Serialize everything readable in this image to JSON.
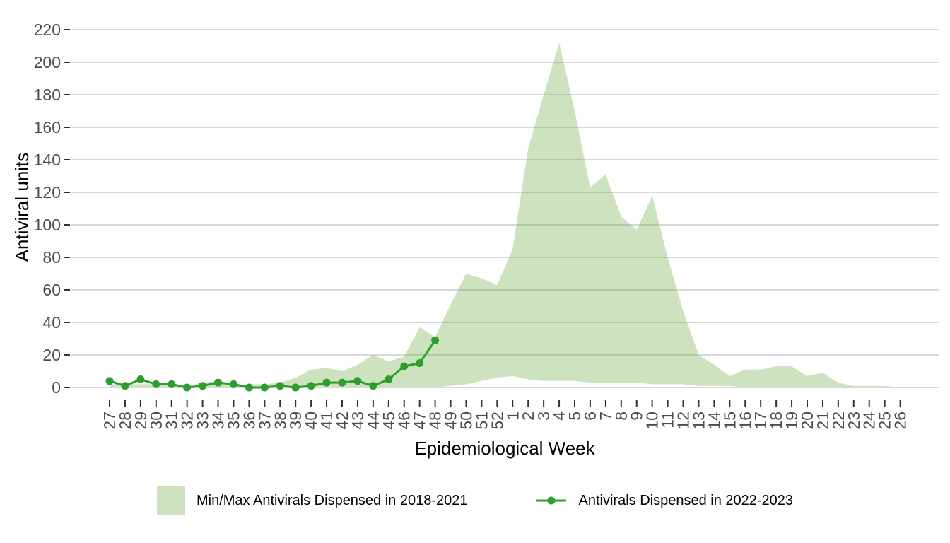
{
  "chart_data": {
    "type": "area",
    "title": "",
    "xlabel": "Epidemiological Week",
    "ylabel": "Antiviral units",
    "ylim": [
      0,
      220
    ],
    "yticks": [
      0,
      20,
      40,
      60,
      80,
      100,
      120,
      140,
      160,
      180,
      200,
      220
    ],
    "grid": "horizontal-major",
    "legend_position": "bottom",
    "x_tick_rotation": 90,
    "categories": [
      "27",
      "28",
      "29",
      "30",
      "31",
      "32",
      "33",
      "34",
      "35",
      "36",
      "37",
      "38",
      "39",
      "40",
      "41",
      "42",
      "43",
      "44",
      "45",
      "46",
      "47",
      "48",
      "49",
      "50",
      "51",
      "52",
      "1",
      "2",
      "3",
      "4",
      "5",
      "6",
      "7",
      "8",
      "9",
      "10",
      "11",
      "12",
      "13",
      "14",
      "15",
      "16",
      "17",
      "18",
      "19",
      "20",
      "21",
      "22",
      "23",
      "24",
      "25",
      "26"
    ],
    "series": [
      {
        "name": "Min/Max Antivirals Dispensed in 2018-2021",
        "type": "band",
        "color": "#59a22e",
        "fill_opacity": 0.3,
        "max": [
          2,
          2,
          2,
          2,
          1,
          1,
          3,
          4,
          1,
          2,
          2,
          3,
          6,
          11,
          12,
          10,
          14,
          20,
          16,
          19,
          37,
          31,
          51,
          70,
          67,
          63,
          85,
          147,
          180,
          212,
          170,
          123,
          131,
          105,
          97,
          118,
          80,
          47,
          20,
          14,
          7,
          11,
          11,
          13,
          13,
          7,
          9,
          3,
          1,
          1,
          1,
          0
        ],
        "min": [
          0,
          0,
          0,
          0,
          0,
          0,
          0,
          0,
          0,
          0,
          0,
          0,
          0,
          0,
          0,
          0,
          0,
          0,
          0,
          0,
          0,
          0,
          1,
          2,
          4,
          6,
          7,
          5,
          4,
          4,
          4,
          3,
          3,
          3,
          3,
          2,
          2,
          2,
          1,
          1,
          1,
          0,
          0,
          0,
          0,
          0,
          0,
          0,
          0,
          0,
          0,
          0
        ]
      },
      {
        "name": "Antivirals Dispensed in 2022-2023",
        "type": "line",
        "color": "#2e9d2c",
        "marker": "circle",
        "weeks_covered": [
          "27",
          "28",
          "29",
          "30",
          "31",
          "32",
          "33",
          "34",
          "35",
          "36",
          "37",
          "38",
          "39",
          "40",
          "41",
          "42",
          "43",
          "44",
          "45",
          "46",
          "47",
          "48"
        ],
        "values": [
          4,
          1,
          5,
          2,
          2,
          0,
          1,
          3,
          2,
          0,
          0,
          1,
          0,
          1,
          3,
          3,
          4,
          1,
          5,
          13,
          15,
          29
        ]
      }
    ]
  },
  "colors": {
    "background": "#ffffff",
    "gridline": "#d9d9d9",
    "tick_mark": "#333333",
    "tick_label": "#4d4d4d",
    "axis_title": "#000000"
  }
}
